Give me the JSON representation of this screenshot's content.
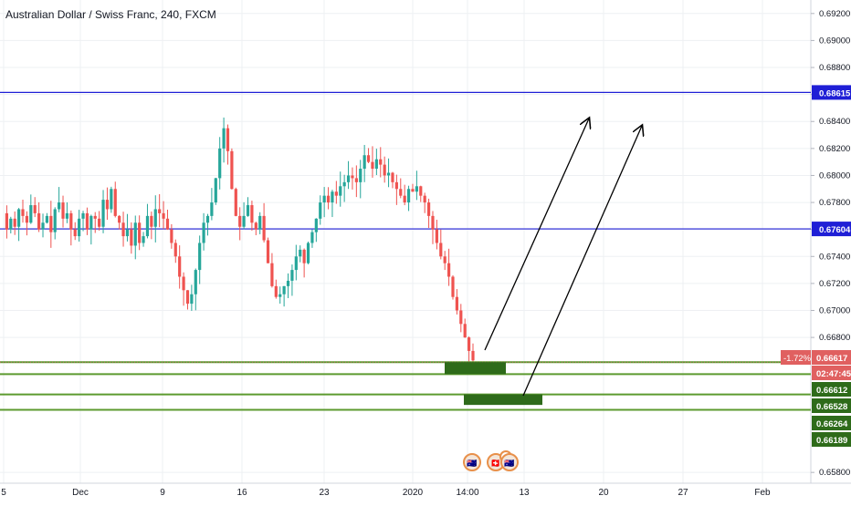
{
  "title": "Australian Dollar / Swiss Franc, 240, FXCM",
  "colors": {
    "bull": "#26a69a",
    "bear": "#ef5350",
    "hline_blue": "#1f1fd6",
    "zone_green": "#2e6b1a",
    "zone_line": "#5c9a2f",
    "price_label_red": "#e06060"
  },
  "chart_data": {
    "type": "candlestick",
    "y_axis": {
      "min": 0.6572,
      "max": 0.693,
      "ticks": [
        "0.69200",
        "0.69000",
        "0.68800",
        "0.68600",
        "0.68400",
        "0.68200",
        "0.68000",
        "0.67800",
        "0.67600",
        "0.67400",
        "0.67200",
        "0.67000",
        "0.66800",
        "0.65800"
      ]
    },
    "x_axis": {
      "ticks": [
        "5",
        "Dec",
        "9",
        "16",
        "23",
        "2020",
        "14:00",
        "13",
        "20",
        "27",
        "Feb"
      ]
    },
    "grid": true,
    "horizontal_lines": [
      {
        "price": 0.68615,
        "label": "0.68615",
        "color": "#1f1fd6"
      },
      {
        "price": 0.67604,
        "label": "0.67604",
        "color": "#1f1fd6"
      }
    ],
    "support_lines": [
      0.66617,
      0.66528,
      0.66378,
      0.66264
    ],
    "zones": [
      {
        "price_top": 0.66617,
        "price_bottom": 0.66528,
        "x_start": "Jan 9",
        "x_end": "Jan 12"
      },
      {
        "price_top": 0.66378,
        "price_bottom": 0.663,
        "x_start": "Jan 11",
        "x_end": "Jan 15"
      }
    ],
    "price_labels": [
      {
        "text": "0.66617",
        "style": "red"
      },
      {
        "text": "02:47:45",
        "style": "red"
      },
      {
        "text": "0.66612",
        "style": "green"
      },
      {
        "text": "0.66528",
        "style": "green"
      },
      {
        "text": "0.66264",
        "style": "green"
      },
      {
        "text": "0.66189",
        "style": "green"
      }
    ],
    "change_label": "-1.72%",
    "arrows": [
      {
        "from": {
          "date": "Jan 11",
          "price": 0.6668
        },
        "to": {
          "date": "Jan 19",
          "price": 0.684
        }
      },
      {
        "from": {
          "date": "Jan 13",
          "price": 0.664
        },
        "to": {
          "date": "Jan 22",
          "price": 0.6838
        }
      }
    ],
    "price_path": [
      0.6772,
      0.676,
      0.6768,
      0.6762,
      0.6775,
      0.677,
      0.6765,
      0.6778,
      0.6772,
      0.676,
      0.6765,
      0.677,
      0.6758,
      0.6775,
      0.678,
      0.6768,
      0.6772,
      0.676,
      0.6755,
      0.6768,
      0.6772,
      0.676,
      0.677,
      0.6768,
      0.6762,
      0.6782,
      0.6775,
      0.679,
      0.677,
      0.6765,
      0.6755,
      0.676,
      0.6748,
      0.6765,
      0.675,
      0.6755,
      0.677,
      0.6762,
      0.6775,
      0.6772,
      0.6768,
      0.676,
      0.675,
      0.674,
      0.6725,
      0.6715,
      0.6705,
      0.6712,
      0.673,
      0.675,
      0.6765,
      0.677,
      0.678,
      0.6798,
      0.682,
      0.6835,
      0.6818,
      0.679,
      0.677,
      0.6762,
      0.677,
      0.6778,
      0.6765,
      0.676,
      0.677,
      0.6752,
      0.6735,
      0.6718,
      0.671,
      0.6712,
      0.6718,
      0.6722,
      0.673,
      0.674,
      0.6745,
      0.6735,
      0.675,
      0.6758,
      0.6768,
      0.678,
      0.6785,
      0.678,
      0.6788,
      0.6785,
      0.6792,
      0.6795,
      0.68,
      0.6798,
      0.6795,
      0.6805,
      0.6815,
      0.681,
      0.6805,
      0.6812,
      0.6808,
      0.68,
      0.6802,
      0.6795,
      0.679,
      0.6785,
      0.678,
      0.679,
      0.6788,
      0.6792,
      0.6785,
      0.678,
      0.677,
      0.676,
      0.675,
      0.674,
      0.6735,
      0.6725,
      0.671,
      0.67,
      0.669,
      0.668,
      0.667,
      0.6663
    ]
  },
  "event_icons": [
    {
      "name": "aud-flag-icon",
      "label": "🇦🇺"
    },
    {
      "name": "chf-flag-icon",
      "label": "🇨🇭"
    },
    {
      "name": "event-count-badge",
      "label": "2"
    },
    {
      "name": "aud-flag-icon-2",
      "label": "🇦🇺"
    }
  ]
}
